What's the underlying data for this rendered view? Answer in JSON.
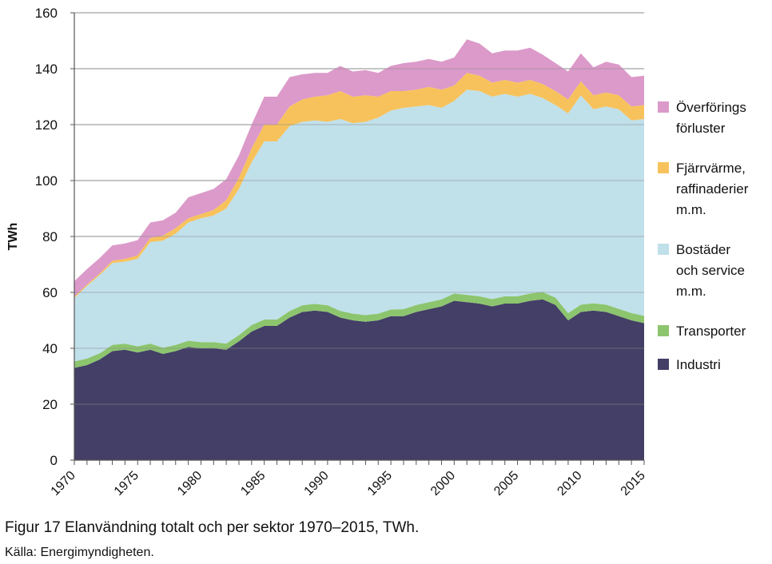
{
  "caption": "Figur 17 Elanvändning totalt och per sektor 1970–2015, TWh.",
  "source": "Källa: Energimyndigheten.",
  "chart_data": {
    "type": "area",
    "stacked": true,
    "ylabel": "TWh",
    "xlabel": "",
    "ylim": [
      0,
      160
    ],
    "yticks": [
      0,
      20,
      40,
      60,
      80,
      100,
      120,
      140,
      160
    ],
    "xlim": [
      1970,
      2015
    ],
    "xticks": [
      1970,
      1975,
      1980,
      1985,
      1990,
      1995,
      2000,
      2005,
      2010,
      2015
    ],
    "x": [
      1970,
      1971,
      1972,
      1973,
      1974,
      1975,
      1976,
      1977,
      1978,
      1979,
      1980,
      1981,
      1982,
      1983,
      1984,
      1985,
      1986,
      1987,
      1988,
      1989,
      1990,
      1991,
      1992,
      1993,
      1994,
      1995,
      1996,
      1997,
      1998,
      1999,
      2000,
      2001,
      2002,
      2003,
      2004,
      2005,
      2006,
      2007,
      2008,
      2009,
      2010,
      2011,
      2012,
      2013,
      2014,
      2015
    ],
    "grid": true,
    "legend_position": "right",
    "series": [
      {
        "name": "Industri",
        "color": "#433f66",
        "values": [
          33,
          34,
          36,
          39,
          39.5,
          38.5,
          39.5,
          38,
          39,
          40.5,
          40,
          40,
          39.5,
          42.5,
          46,
          48,
          48,
          51,
          53,
          53.5,
          53,
          51,
          50,
          49.5,
          50,
          51.5,
          51.5,
          53,
          54,
          55,
          57,
          56.5,
          56,
          55,
          56,
          56,
          57,
          57.5,
          55.5,
          50,
          53,
          53.5,
          53,
          51.5,
          50,
          49
        ]
      },
      {
        "name": "Transporter",
        "color": "#8cc56e",
        "values": [
          2.3,
          2.3,
          2.2,
          2.2,
          2.2,
          2.2,
          2.2,
          2.2,
          2.2,
          2.2,
          2.2,
          2.2,
          2.2,
          2.2,
          2.3,
          2.3,
          2.3,
          2.3,
          2.4,
          2.4,
          2.4,
          2.4,
          2.4,
          2.4,
          2.4,
          2.4,
          2.5,
          2.5,
          2.5,
          2.5,
          2.6,
          2.6,
          2.6,
          2.6,
          2.6,
          2.6,
          2.6,
          2.6,
          2.6,
          2.6,
          2.6,
          2.6,
          2.6,
          2.6,
          2.6,
          2.6
        ]
      },
      {
        "name": "Bostäder och service m.m.",
        "color": "#c0e0ea",
        "values": [
          22.7,
          26,
          28,
          29.3,
          29.3,
          31.3,
          36.3,
          38.3,
          39.8,
          42.3,
          44.3,
          45.3,
          48.3,
          52.3,
          58.2,
          63.7,
          63.7,
          66.2,
          65.6,
          65.6,
          65.6,
          68.6,
          68.1,
          69.1,
          70.1,
          71.1,
          72,
          71,
          70.5,
          68.5,
          68.9,
          73.4,
          73.4,
          72.4,
          72.4,
          71.4,
          71.4,
          69.4,
          68.9,
          71.4,
          74.9,
          69.4,
          70.9,
          71.4,
          68.9,
          70.4
        ]
      },
      {
        "name": "Fjärrvärme, raffinaderier m.m.",
        "color": "#f7c25c",
        "values": [
          0.5,
          0.5,
          0.6,
          0.8,
          1,
          1.2,
          1.5,
          1.8,
          2,
          1.5,
          1.5,
          2,
          3,
          4,
          5,
          6,
          6,
          7,
          8,
          8.5,
          9.5,
          10,
          9.5,
          9.5,
          7.5,
          7,
          6,
          6,
          6.5,
          6.5,
          5.5,
          6,
          5.5,
          5,
          5,
          5,
          5,
          5,
          5,
          5,
          5,
          5,
          5,
          5,
          5,
          5
        ]
      },
      {
        "name": "Överförings förluster",
        "color": "#db9ac9",
        "values": [
          5.5,
          5.5,
          5.5,
          5.5,
          5.5,
          5.5,
          5.5,
          5.5,
          5.5,
          7.5,
          7.5,
          7.5,
          7.5,
          8,
          8.5,
          10,
          10,
          10.5,
          9,
          8.5,
          8,
          9,
          9,
          9,
          8.5,
          9,
          10,
          10,
          10,
          10,
          10,
          12,
          11.5,
          10.5,
          10.5,
          11.5,
          11.5,
          10.5,
          10,
          10,
          10,
          10,
          11,
          11,
          10.5,
          10.5
        ]
      }
    ],
    "legend": [
      {
        "series": "Överförings förluster",
        "lines": [
          "Överförings",
          "förluster"
        ]
      },
      {
        "series": "Fjärrvärme, raffinaderier m.m.",
        "lines": [
          "Fjärrvärme,",
          "raffinaderier",
          "m.m."
        ]
      },
      {
        "series": "Bostäder och service m.m.",
        "lines": [
          "Bostäder",
          "och service",
          "m.m."
        ]
      },
      {
        "series": "Transporter",
        "lines": [
          "Transporter"
        ]
      },
      {
        "series": "Industri",
        "lines": [
          "Industri"
        ]
      }
    ]
  }
}
